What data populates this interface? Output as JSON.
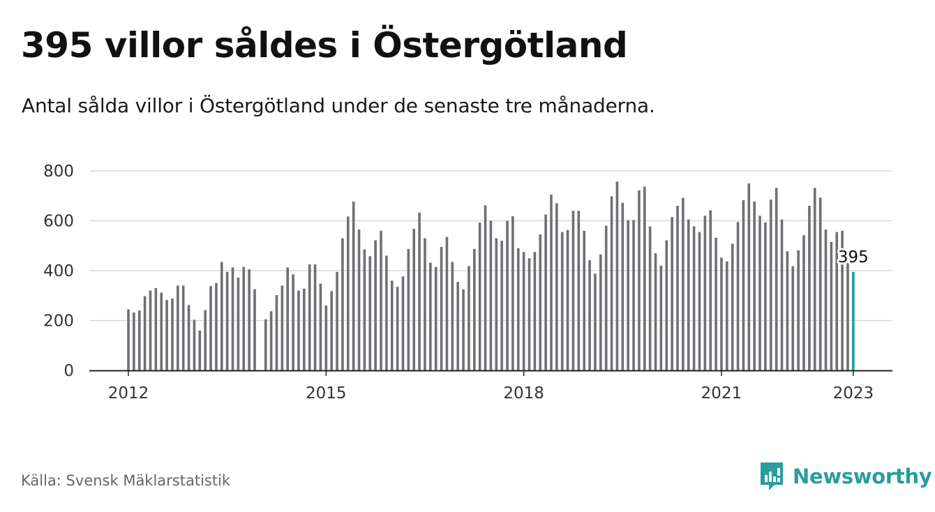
{
  "header": {
    "title": "395 villor såldes i Östergötland",
    "subtitle": "Antal sålda villor i Östergötland under de senaste tre månaderna."
  },
  "footer": {
    "source": "Källa: Svensk Mäklarstatistik",
    "brand": "Newsworthy"
  },
  "colors": {
    "bar": "#6f6f74",
    "highlight": "#1aa394",
    "grid": "#d9d9d9",
    "axis": "#222222",
    "brand": "#2a9d9d"
  },
  "chart_data": {
    "type": "bar",
    "title": "395 villor såldes i Östergötland",
    "xlabel": "",
    "ylabel": "",
    "ylim": [
      0,
      800
    ],
    "yticks": [
      0,
      200,
      400,
      600,
      800
    ],
    "xticks": [
      {
        "label": "2012",
        "month_index": 0
      },
      {
        "label": "2015",
        "month_index": 36
      },
      {
        "label": "2018",
        "month_index": 72
      },
      {
        "label": "2021",
        "month_index": 108
      },
      {
        "label": "2023",
        "month_index": 132
      }
    ],
    "start_month": "2012-01",
    "grid": true,
    "highlight_last": true,
    "last_value_label": "395",
    "values": [
      245,
      232,
      240,
      298,
      320,
      330,
      312,
      282,
      288,
      340,
      340,
      262,
      203,
      160,
      242,
      338,
      350,
      435,
      395,
      413,
      372,
      415,
      405,
      326,
      0,
      205,
      237,
      302,
      340,
      413,
      385,
      320,
      328,
      425,
      425,
      348,
      260,
      318,
      395,
      530,
      617,
      677,
      565,
      485,
      458,
      522,
      560,
      460,
      360,
      335,
      377,
      487,
      568,
      633,
      530,
      432,
      415,
      495,
      535,
      435,
      355,
      325,
      418,
      487,
      593,
      662,
      600,
      530,
      520,
      600,
      618,
      490,
      475,
      450,
      475,
      545,
      625,
      705,
      670,
      555,
      563,
      640,
      640,
      560,
      442,
      388,
      465,
      580,
      698,
      757,
      672,
      602,
      603,
      722,
      737,
      577,
      470,
      420,
      522,
      615,
      660,
      692,
      605,
      578,
      555,
      620,
      642,
      532,
      452,
      437,
      508,
      595,
      683,
      750,
      677,
      620,
      593,
      685,
      732,
      605,
      478,
      418,
      482,
      542,
      660,
      732,
      693,
      565,
      515,
      555,
      560,
      432,
      395
    ]
  }
}
